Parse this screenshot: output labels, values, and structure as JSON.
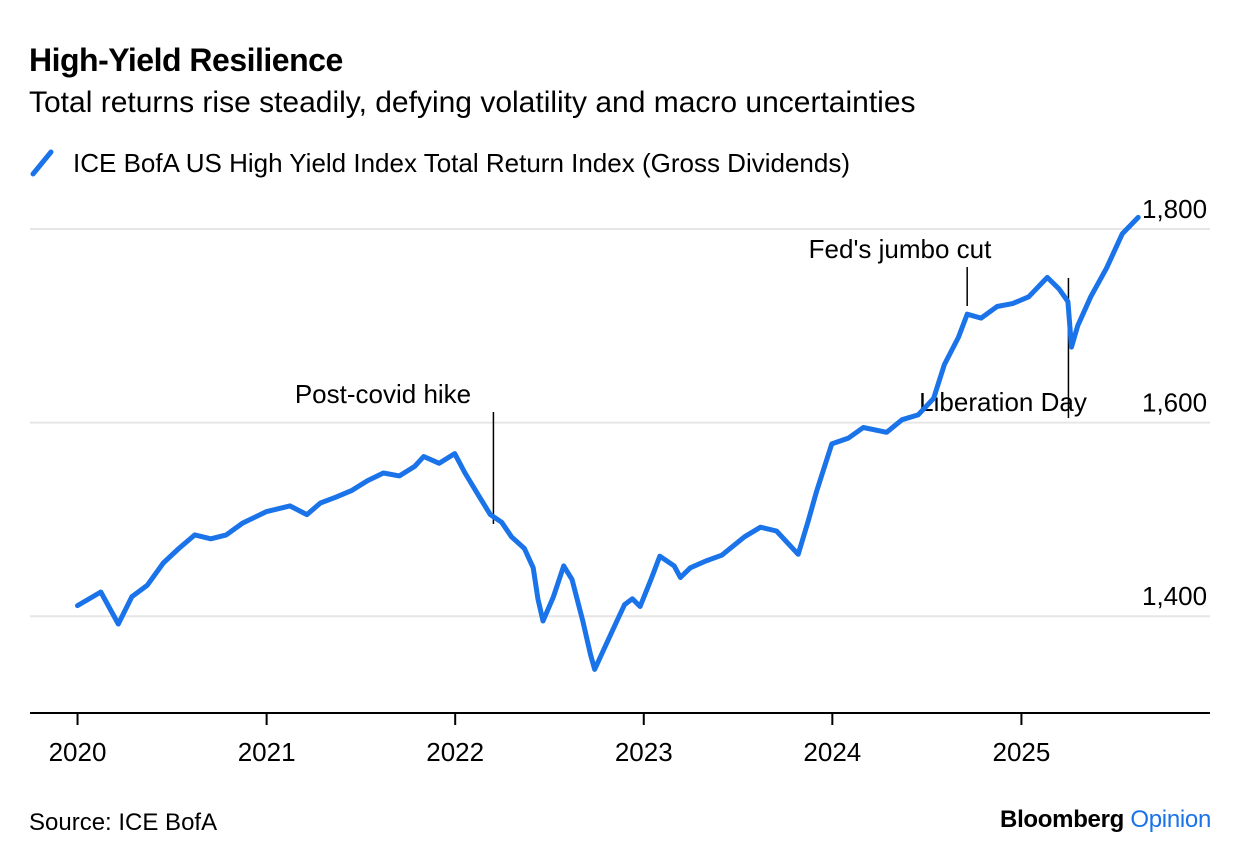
{
  "chart_data": {
    "type": "line",
    "title": "High-Yield Resilience",
    "subtitle": "Total returns rise steadily, defying volatility and macro uncertainties",
    "series": [
      {
        "name": "ICE BofA US High Yield Index Total Return Index (Gross Dividends)",
        "color": "#1a73e8",
        "points": [
          [
            "2020-01-01",
            1411
          ],
          [
            "2020-02-15",
            1425
          ],
          [
            "2020-03-20",
            1392
          ],
          [
            "2020-04-15",
            1420
          ],
          [
            "2020-05-15",
            1432
          ],
          [
            "2020-06-15",
            1455
          ],
          [
            "2020-07-15",
            1470
          ],
          [
            "2020-08-15",
            1484
          ],
          [
            "2020-09-15",
            1480
          ],
          [
            "2020-10-15",
            1484
          ],
          [
            "2020-11-15",
            1496
          ],
          [
            "2020-12-31",
            1508
          ],
          [
            "2021-02-15",
            1514
          ],
          [
            "2021-03-20",
            1505
          ],
          [
            "2021-04-15",
            1517
          ],
          [
            "2021-05-15",
            1523
          ],
          [
            "2021-06-15",
            1530
          ],
          [
            "2021-07-15",
            1540
          ],
          [
            "2021-08-15",
            1548
          ],
          [
            "2021-09-15",
            1545
          ],
          [
            "2021-10-15",
            1555
          ],
          [
            "2021-11-01",
            1565
          ],
          [
            "2021-12-01",
            1558
          ],
          [
            "2021-12-31",
            1568
          ],
          [
            "2022-01-20",
            1548
          ],
          [
            "2022-02-15",
            1525
          ],
          [
            "2022-03-10",
            1505
          ],
          [
            "2022-04-01",
            1497
          ],
          [
            "2022-04-20",
            1482
          ],
          [
            "2022-05-15",
            1470
          ],
          [
            "2022-06-01",
            1450
          ],
          [
            "2022-06-10",
            1418
          ],
          [
            "2022-06-20",
            1395
          ],
          [
            "2022-07-10",
            1420
          ],
          [
            "2022-07-30",
            1452
          ],
          [
            "2022-08-15",
            1438
          ],
          [
            "2022-09-05",
            1395
          ],
          [
            "2022-09-20",
            1360
          ],
          [
            "2022-09-28",
            1345
          ],
          [
            "2022-10-15",
            1365
          ],
          [
            "2022-11-10",
            1395
          ],
          [
            "2022-11-25",
            1412
          ],
          [
            "2022-12-10",
            1418
          ],
          [
            "2022-12-25",
            1410
          ],
          [
            "2023-01-15",
            1438
          ],
          [
            "2023-02-01",
            1462
          ],
          [
            "2023-03-01",
            1452
          ],
          [
            "2023-03-13",
            1440
          ],
          [
            "2023-04-01",
            1450
          ],
          [
            "2023-05-01",
            1457
          ],
          [
            "2023-06-01",
            1463
          ],
          [
            "2023-07-15",
            1482
          ],
          [
            "2023-08-15",
            1492
          ],
          [
            "2023-09-15",
            1488
          ],
          [
            "2023-10-27",
            1464
          ],
          [
            "2023-11-15",
            1498
          ],
          [
            "2023-12-01",
            1528
          ],
          [
            "2023-12-31",
            1578
          ],
          [
            "2024-02-01",
            1584
          ],
          [
            "2024-03-01",
            1595
          ],
          [
            "2024-04-15",
            1590
          ],
          [
            "2024-05-15",
            1603
          ],
          [
            "2024-06-15",
            1608
          ],
          [
            "2024-07-15",
            1625
          ],
          [
            "2024-08-05",
            1660
          ],
          [
            "2024-09-01",
            1688
          ],
          [
            "2024-09-18",
            1712
          ],
          [
            "2024-10-15",
            1708
          ],
          [
            "2024-11-15",
            1720
          ],
          [
            "2024-12-15",
            1723
          ],
          [
            "2025-01-15",
            1730
          ],
          [
            "2025-02-20",
            1750
          ],
          [
            "2025-03-15",
            1738
          ],
          [
            "2025-04-01",
            1725
          ],
          [
            "2025-04-08",
            1678
          ],
          [
            "2025-04-20",
            1700
          ],
          [
            "2025-05-15",
            1730
          ],
          [
            "2025-06-15",
            1760
          ],
          [
            "2025-07-15",
            1795
          ],
          [
            "2025-08-15",
            1812
          ]
        ]
      }
    ],
    "annotations": [
      {
        "label": "Post-covid hike",
        "date": "2022-03-16"
      },
      {
        "label": "Fed's jumbo cut",
        "date": "2024-09-18"
      },
      {
        "label": "Liberation Day",
        "date": "2025-04-02"
      }
    ],
    "y_ticks": [
      1400,
      1600,
      1800
    ],
    "y_tick_labels": [
      "1,400",
      "1,600",
      "1,800"
    ],
    "x_ticks": [
      "2020",
      "2021",
      "2022",
      "2023",
      "2024",
      "2025"
    ],
    "ylim": [
      1300,
      1830
    ],
    "xlim": [
      "2019-10-01",
      "2026-01-01"
    ],
    "y_axis_position": "right",
    "grid": "horizontal",
    "legend_position": "top-left",
    "xlabel": "",
    "ylabel": ""
  },
  "source": "Source: ICE BofA",
  "branding": {
    "brand": "Bloomberg",
    "product": "Opinion"
  }
}
